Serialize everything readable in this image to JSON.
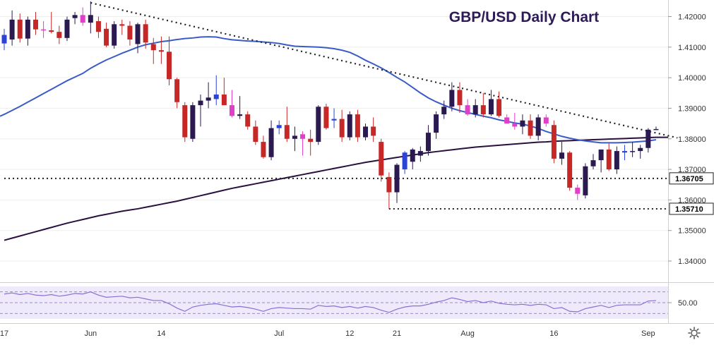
{
  "chart_data": {
    "type": "candlestick",
    "title": "GBP/USD Daily Chart",
    "colors": {
      "title": "#2d1a57",
      "bull": "#2a1a4f",
      "bear": "#c62828",
      "bull_highlight": "#2b44d6",
      "bear_highlight": "#e040c8",
      "ma_50": "#3a5bc7",
      "ma_200": "#2a1040",
      "rsi_line": "#8a6fd0",
      "rsi_band": "#efeafb",
      "label_bg": "#ffffff",
      "label_text": "#000000",
      "axis_text": "#333333",
      "grid": "#eeeeee"
    },
    "ylim": [
      1.334,
      1.4245
    ],
    "y_ticks": [
      {
        "value": 1.42,
        "label": "1.42000"
      },
      {
        "value": 1.41,
        "label": "1.41000"
      },
      {
        "value": 1.4,
        "label": "1.40000"
      },
      {
        "value": 1.39,
        "label": "1.39000"
      },
      {
        "value": 1.38,
        "label": "1.38000"
      },
      {
        "value": 1.37,
        "label": "1.37000"
      },
      {
        "value": 1.36,
        "label": "1.36000"
      },
      {
        "value": 1.35,
        "label": "1.35000"
      },
      {
        "value": 1.34,
        "label": "1.34000"
      }
    ],
    "x_ticks": [
      {
        "index": 0,
        "label": "17"
      },
      {
        "index": 11,
        "label": "Jun"
      },
      {
        "index": 20,
        "label": "14"
      },
      {
        "index": 35,
        "label": "Jul"
      },
      {
        "index": 44,
        "label": "12"
      },
      {
        "index": 50,
        "label": "21"
      },
      {
        "index": 59,
        "label": "Aug"
      },
      {
        "index": 70,
        "label": "16"
      },
      {
        "index": 82,
        "label": "Sep"
      }
    ],
    "price_labels": [
      {
        "value": 1.36705,
        "label": "1.36705"
      },
      {
        "value": 1.3571,
        "label": "1.35710"
      }
    ],
    "support_lines": [
      {
        "value": 1.36705,
        "from_index": 0
      },
      {
        "value": 1.3571,
        "from_index": 49
      }
    ],
    "trendline": {
      "from": {
        "index": 11,
        "value": 1.4245
      },
      "to": {
        "index": 85,
        "value": 1.3805
      }
    },
    "candles": [
      {
        "o": 1.4112,
        "h": 1.416,
        "l": 1.409,
        "c": 1.414,
        "hl": true
      },
      {
        "o": 1.4125,
        "h": 1.422,
        "l": 1.4105,
        "c": 1.419
      },
      {
        "o": 1.419,
        "h": 1.421,
        "l": 1.4115,
        "c": 1.4128
      },
      {
        "o": 1.4128,
        "h": 1.42,
        "l": 1.4105,
        "c": 1.419
      },
      {
        "o": 1.419,
        "h": 1.4215,
        "l": 1.414,
        "c": 1.4158
      },
      {
        "o": 1.4158,
        "h": 1.4185,
        "l": 1.413,
        "c": 1.4155,
        "hl": true
      },
      {
        "o": 1.4155,
        "h": 1.4215,
        "l": 1.4145,
        "c": 1.415
      },
      {
        "o": 1.415,
        "h": 1.417,
        "l": 1.411,
        "c": 1.413
      },
      {
        "o": 1.413,
        "h": 1.42,
        "l": 1.412,
        "c": 1.419
      },
      {
        "o": 1.4195,
        "h": 1.4215,
        "l": 1.4175,
        "c": 1.4205
      },
      {
        "o": 1.4205,
        "h": 1.423,
        "l": 1.417,
        "c": 1.418,
        "hl": true
      },
      {
        "o": 1.418,
        "h": 1.425,
        "l": 1.4145,
        "c": 1.4205
      },
      {
        "o": 1.4185,
        "h": 1.42,
        "l": 1.413,
        "c": 1.415
      },
      {
        "o": 1.416,
        "h": 1.418,
        "l": 1.41,
        "c": 1.4105
      },
      {
        "o": 1.4105,
        "h": 1.4185,
        "l": 1.4095,
        "c": 1.4175
      },
      {
        "o": 1.4175,
        "h": 1.419,
        "l": 1.414,
        "c": 1.417
      },
      {
        "o": 1.417,
        "h": 1.4185,
        "l": 1.4105,
        "c": 1.4125
      },
      {
        "o": 1.411,
        "h": 1.418,
        "l": 1.408,
        "c": 1.4175
      },
      {
        "o": 1.4175,
        "h": 1.419,
        "l": 1.4095,
        "c": 1.4115
      },
      {
        "o": 1.411,
        "h": 1.413,
        "l": 1.4045,
        "c": 1.409
      },
      {
        "o": 1.409,
        "h": 1.4135,
        "l": 1.4045,
        "c": 1.4085
      },
      {
        "o": 1.4085,
        "h": 1.4135,
        "l": 1.3975,
        "c": 1.3995
      },
      {
        "o": 1.3995,
        "h": 1.4,
        "l": 1.39,
        "c": 1.392
      },
      {
        "o": 1.391,
        "h": 1.392,
        "l": 1.379,
        "c": 1.3805
      },
      {
        "o": 1.38,
        "h": 1.392,
        "l": 1.379,
        "c": 1.391
      },
      {
        "o": 1.391,
        "h": 1.3945,
        "l": 1.384,
        "c": 1.3925
      },
      {
        "o": 1.3925,
        "h": 1.3985,
        "l": 1.39,
        "c": 1.3935
      },
      {
        "o": 1.393,
        "h": 1.4008,
        "l": 1.391,
        "c": 1.3945,
        "hl": true
      },
      {
        "o": 1.3945,
        "h": 1.4,
        "l": 1.391,
        "c": 1.391
      },
      {
        "o": 1.391,
        "h": 1.396,
        "l": 1.387,
        "c": 1.3875,
        "hl": true
      },
      {
        "o": 1.3875,
        "h": 1.394,
        "l": 1.3865,
        "c": 1.388
      },
      {
        "o": 1.388,
        "h": 1.389,
        "l": 1.383,
        "c": 1.384
      },
      {
        "o": 1.384,
        "h": 1.386,
        "l": 1.378,
        "c": 1.379
      },
      {
        "o": 1.379,
        "h": 1.381,
        "l": 1.3735,
        "c": 1.374
      },
      {
        "o": 1.374,
        "h": 1.386,
        "l": 1.373,
        "c": 1.3835
      },
      {
        "o": 1.3835,
        "h": 1.386,
        "l": 1.3815,
        "c": 1.3845,
        "hl": true
      },
      {
        "o": 1.3845,
        "h": 1.3905,
        "l": 1.379,
        "c": 1.38
      },
      {
        "o": 1.38,
        "h": 1.384,
        "l": 1.376,
        "c": 1.381
      },
      {
        "o": 1.3815,
        "h": 1.3825,
        "l": 1.3745,
        "c": 1.38,
        "hl": true
      },
      {
        "o": 1.38,
        "h": 1.383,
        "l": 1.3745,
        "c": 1.379
      },
      {
        "o": 1.379,
        "h": 1.391,
        "l": 1.378,
        "c": 1.3905
      },
      {
        "o": 1.3905,
        "h": 1.3915,
        "l": 1.383,
        "c": 1.3835
      },
      {
        "o": 1.386,
        "h": 1.39,
        "l": 1.3835,
        "c": 1.3865,
        "hl": true
      },
      {
        "o": 1.3865,
        "h": 1.3895,
        "l": 1.379,
        "c": 1.3805
      },
      {
        "o": 1.3805,
        "h": 1.389,
        "l": 1.3795,
        "c": 1.388
      },
      {
        "o": 1.388,
        "h": 1.3895,
        "l": 1.379,
        "c": 1.3805
      },
      {
        "o": 1.3805,
        "h": 1.385,
        "l": 1.3795,
        "c": 1.384
      },
      {
        "o": 1.384,
        "h": 1.387,
        "l": 1.379,
        "c": 1.381
      },
      {
        "o": 1.379,
        "h": 1.38,
        "l": 1.366,
        "c": 1.368
      },
      {
        "o": 1.3675,
        "h": 1.369,
        "l": 1.3571,
        "c": 1.3625
      },
      {
        "o": 1.3625,
        "h": 1.372,
        "l": 1.359,
        "c": 1.3715
      },
      {
        "o": 1.37,
        "h": 1.376,
        "l": 1.3685,
        "c": 1.3755,
        "hl": true
      },
      {
        "o": 1.3725,
        "h": 1.377,
        "l": 1.37,
        "c": 1.3765
      },
      {
        "o": 1.3745,
        "h": 1.3775,
        "l": 1.3725,
        "c": 1.376
      },
      {
        "o": 1.376,
        "h": 1.3845,
        "l": 1.3745,
        "c": 1.382
      },
      {
        "o": 1.382,
        "h": 1.389,
        "l": 1.38,
        "c": 1.388
      },
      {
        "o": 1.388,
        "h": 1.3925,
        "l": 1.3865,
        "c": 1.3905
      },
      {
        "o": 1.3905,
        "h": 1.3985,
        "l": 1.389,
        "c": 1.396
      },
      {
        "o": 1.396,
        "h": 1.3985,
        "l": 1.3885,
        "c": 1.391
      },
      {
        "o": 1.391,
        "h": 1.393,
        "l": 1.3875,
        "c": 1.388,
        "hl": true
      },
      {
        "o": 1.388,
        "h": 1.393,
        "l": 1.387,
        "c": 1.391
      },
      {
        "o": 1.391,
        "h": 1.395,
        "l": 1.387,
        "c": 1.388
      },
      {
        "o": 1.388,
        "h": 1.396,
        "l": 1.3875,
        "c": 1.393
      },
      {
        "o": 1.393,
        "h": 1.3955,
        "l": 1.387,
        "c": 1.3875
      },
      {
        "o": 1.387,
        "h": 1.388,
        "l": 1.385,
        "c": 1.385,
        "hl": true
      },
      {
        "o": 1.385,
        "h": 1.3885,
        "l": 1.383,
        "c": 1.384,
        "hl": true
      },
      {
        "o": 1.384,
        "h": 1.388,
        "l": 1.3815,
        "c": 1.386
      },
      {
        "o": 1.386,
        "h": 1.388,
        "l": 1.38,
        "c": 1.381
      },
      {
        "o": 1.381,
        "h": 1.388,
        "l": 1.3795,
        "c": 1.387
      },
      {
        "o": 1.387,
        "h": 1.388,
        "l": 1.384,
        "c": 1.385,
        "hl": true
      },
      {
        "o": 1.3845,
        "h": 1.386,
        "l": 1.372,
        "c": 1.3735
      },
      {
        "o": 1.3735,
        "h": 1.379,
        "l": 1.3715,
        "c": 1.3755
      },
      {
        "o": 1.3755,
        "h": 1.376,
        "l": 1.363,
        "c": 1.364
      },
      {
        "o": 1.364,
        "h": 1.365,
        "l": 1.36,
        "c": 1.362,
        "hl": true
      },
      {
        "o": 1.3615,
        "h": 1.372,
        "l": 1.3605,
        "c": 1.371
      },
      {
        "o": 1.371,
        "h": 1.375,
        "l": 1.37,
        "c": 1.373
      },
      {
        "o": 1.373,
        "h": 1.3765,
        "l": 1.369,
        "c": 1.3765
      },
      {
        "o": 1.3765,
        "h": 1.3785,
        "l": 1.3695,
        "c": 1.37
      },
      {
        "o": 1.37,
        "h": 1.3775,
        "l": 1.3685,
        "c": 1.376
      },
      {
        "o": 1.3755,
        "h": 1.378,
        "l": 1.373,
        "c": 1.376,
        "hl": true
      },
      {
        "o": 1.376,
        "h": 1.379,
        "l": 1.374,
        "c": 1.376
      },
      {
        "o": 1.376,
        "h": 1.378,
        "l": 1.3735,
        "c": 1.377
      },
      {
        "o": 1.377,
        "h": 1.3835,
        "l": 1.3755,
        "c": 1.383
      },
      {
        "o": 1.383,
        "h": 1.384,
        "l": 1.383,
        "c": 1.3832
      }
    ],
    "ma_50": [
      1.388,
      1.3893,
      1.3906,
      1.392,
      1.3934,
      1.3948,
      1.3962,
      1.3976,
      1.399,
      1.4002,
      1.4014,
      1.4031,
      1.4045,
      1.4058,
      1.4069,
      1.408,
      1.409,
      1.41,
      1.4108,
      1.4113,
      1.4118,
      1.4121,
      1.4125,
      1.4128,
      1.413,
      1.4133,
      1.4134,
      1.4133,
      1.4128,
      1.4124,
      1.4122,
      1.412,
      1.4119,
      1.4117,
      1.4115,
      1.4112,
      1.4107,
      1.4103,
      1.4102,
      1.4101,
      1.41,
      1.4098,
      1.4095,
      1.409,
      1.4083,
      1.4071,
      1.4057,
      1.4045,
      1.4032,
      1.4017,
      1.4001,
      1.3986,
      1.3968,
      1.395,
      1.3934,
      1.3921,
      1.391,
      1.39,
      1.3892,
      1.3886,
      1.388,
      1.3874,
      1.3869,
      1.3862,
      1.3857,
      1.3852,
      1.3848,
      1.3842,
      1.3834,
      1.3824,
      1.3816,
      1.3808,
      1.3802,
      1.3797,
      1.3793,
      1.379,
      1.3787,
      1.3787,
      1.3787,
      1.3788,
      1.3789,
      1.3791,
      1.3793,
      1.3797
    ],
    "ma_200": [
      1.3468,
      1.3475,
      1.3482,
      1.3489,
      1.3496,
      1.3503,
      1.351,
      1.3517,
      1.3524,
      1.353,
      1.3536,
      1.3542,
      1.3548,
      1.3553,
      1.3558,
      1.3563,
      1.3567,
      1.3571,
      1.3576,
      1.3581,
      1.3586,
      1.3591,
      1.3596,
      1.3602,
      1.3608,
      1.3614,
      1.362,
      1.3626,
      1.3632,
      1.3638,
      1.3643,
      1.3648,
      1.3653,
      1.3658,
      1.3663,
      1.3668,
      1.3673,
      1.3678,
      1.3683,
      1.3688,
      1.3693,
      1.3698,
      1.3703,
      1.3708,
      1.3713,
      1.3718,
      1.3723,
      1.3727,
      1.3731,
      1.3735,
      1.3739,
      1.3743,
      1.3747,
      1.3751,
      1.3755,
      1.3758,
      1.3761,
      1.3764,
      1.3767,
      1.377,
      1.3773,
      1.3775,
      1.3777,
      1.3779,
      1.3781,
      1.3783,
      1.3785,
      1.3787,
      1.3789,
      1.379,
      1.3792,
      1.3793,
      1.3794,
      1.3795,
      1.3796,
      1.3797,
      1.3798,
      1.3799,
      1.38,
      1.3801,
      1.3802,
      1.3803,
      1.3804,
      1.3805
    ],
    "rsi": {
      "ylim": [
        20,
        80
      ],
      "levels": [
        70,
        50,
        30
      ],
      "tick": {
        "value": 50,
        "label": "50.00"
      },
      "values": [
        66,
        68,
        65,
        67,
        64,
        63,
        65,
        62,
        64,
        67,
        66,
        70,
        64,
        60,
        61,
        62,
        59,
        60,
        57,
        54,
        54,
        48,
        40,
        34,
        42,
        45,
        47,
        48,
        45,
        42,
        43,
        41,
        38,
        34,
        39,
        41,
        40,
        39,
        39,
        38,
        45,
        43,
        44,
        41,
        43,
        40,
        43,
        41,
        36,
        32,
        38,
        42,
        44,
        44,
        47,
        51,
        54,
        59,
        56,
        52,
        54,
        50,
        53,
        49,
        47,
        46,
        47,
        45,
        47,
        46,
        39,
        41,
        34,
        33,
        39,
        42,
        45,
        41,
        45,
        46,
        46,
        46,
        53,
        54
      ]
    }
  },
  "ui": {
    "settings_icon": "gear-icon"
  }
}
